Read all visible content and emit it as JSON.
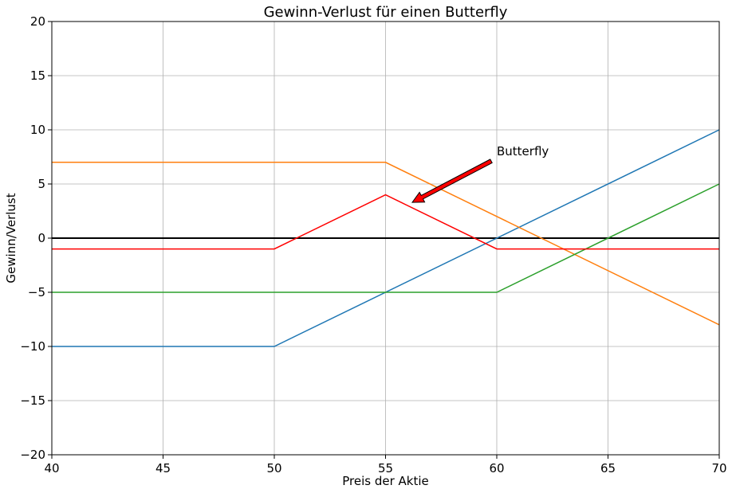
{
  "chart_data": {
    "type": "line",
    "title": "Gewinn-Verlust für einen Butterfly",
    "xlabel": "Preis der Aktie",
    "ylabel": "Gewinn/Verlust",
    "xlim": [
      40,
      70
    ],
    "ylim": [
      -20,
      20
    ],
    "xticks": [
      40,
      45,
      50,
      55,
      60,
      65,
      70
    ],
    "yticks": [
      -20,
      -15,
      -10,
      -5,
      0,
      5,
      10,
      15,
      20
    ],
    "xtick_labels": [
      "40",
      "45",
      "50",
      "55",
      "60",
      "65",
      "70"
    ],
    "ytick_labels": [
      "−20",
      "−15",
      "−10",
      "−5",
      "0",
      "5",
      "10",
      "15",
      "20"
    ],
    "grid": true,
    "zero_line": {
      "y": 0,
      "color": "#000000"
    },
    "series": [
      {
        "color": "#1f77b4",
        "x": [
          40,
          50,
          70
        ],
        "y": [
          -10,
          -10,
          10
        ]
      },
      {
        "color": "#ff7f0e",
        "x": [
          40,
          55,
          70
        ],
        "y": [
          7,
          7,
          -8
        ]
      },
      {
        "color": "#2ca02c",
        "x": [
          40,
          60,
          70
        ],
        "y": [
          -5,
          -5,
          5
        ]
      },
      {
        "color": "#ff0000",
        "x": [
          40,
          50,
          55,
          60,
          70
        ],
        "y": [
          -1,
          -1,
          4,
          -1,
          -1
        ]
      }
    ],
    "annotation": {
      "text": "Butterfly",
      "text_xy": [
        60,
        8
      ],
      "arrow_tip_xy": [
        56.2,
        3.3
      ],
      "arrow_color": "#ff0000"
    }
  }
}
